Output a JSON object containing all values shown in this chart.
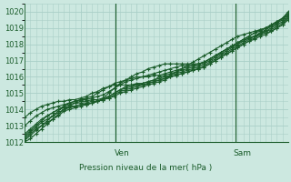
{
  "xlabel": "Pression niveau de la mer( hPa )",
  "ylim": [
    1012,
    1020.5
  ],
  "yticks": [
    1012,
    1013,
    1014,
    1015,
    1016,
    1017,
    1018,
    1019,
    1020
  ],
  "bg_color": "#cce8e0",
  "grid_color": "#aacfc8",
  "line_color": "#1a5c2a",
  "vline_x": [
    0.345,
    0.8
  ],
  "vline_labels": [
    "Ven",
    "Sam"
  ],
  "num_points": 48,
  "series": [
    [
      1012.2,
      1012.5,
      1012.8,
      1013.0,
      1013.2,
      1013.4,
      1013.7,
      1014.0,
      1014.2,
      1014.4,
      1014.5,
      1014.5,
      1014.6,
      1014.6,
      1014.7,
      1014.8,
      1015.0,
      1015.2,
      1015.4,
      1015.5,
      1015.6,
      1015.6,
      1015.7,
      1015.8,
      1016.0,
      1016.1,
      1016.2,
      1016.3,
      1016.4,
      1016.5,
      1016.6,
      1016.7,
      1016.8,
      1017.0,
      1017.2,
      1017.4,
      1017.6,
      1017.8,
      1018.0,
      1018.2,
      1018.4,
      1018.5,
      1018.7,
      1018.9,
      1019.1,
      1019.3,
      1019.6,
      1020.0
    ],
    [
      1012.4,
      1012.7,
      1013.0,
      1013.3,
      1013.6,
      1013.8,
      1014.0,
      1014.2,
      1014.3,
      1014.4,
      1014.4,
      1014.4,
      1014.5,
      1014.5,
      1014.6,
      1014.7,
      1014.9,
      1015.1,
      1015.2,
      1015.3,
      1015.4,
      1015.5,
      1015.6,
      1015.7,
      1015.8,
      1015.9,
      1016.0,
      1016.1,
      1016.2,
      1016.3,
      1016.4,
      1016.5,
      1016.6,
      1016.8,
      1017.0,
      1017.2,
      1017.4,
      1017.6,
      1017.8,
      1018.0,
      1018.2,
      1018.4,
      1018.6,
      1018.7,
      1018.8,
      1019.0,
      1019.2,
      1019.5
    ],
    [
      1012.3,
      1012.6,
      1012.9,
      1013.2,
      1013.4,
      1013.6,
      1013.8,
      1014.0,
      1014.1,
      1014.2,
      1014.3,
      1014.3,
      1014.4,
      1014.5,
      1014.6,
      1014.8,
      1015.0,
      1015.2,
      1015.3,
      1015.4,
      1015.5,
      1015.6,
      1015.7,
      1015.8,
      1015.9,
      1016.0,
      1016.1,
      1016.2,
      1016.3,
      1016.4,
      1016.5,
      1016.6,
      1016.7,
      1016.9,
      1017.1,
      1017.3,
      1017.5,
      1017.7,
      1017.9,
      1018.1,
      1018.3,
      1018.5,
      1018.6,
      1018.8,
      1018.9,
      1019.1,
      1019.3,
      1019.7
    ],
    [
      1012.5,
      1012.8,
      1013.1,
      1013.4,
      1013.6,
      1013.8,
      1014.0,
      1014.1,
      1014.2,
      1014.2,
      1014.3,
      1014.3,
      1014.4,
      1014.5,
      1014.6,
      1014.7,
      1014.8,
      1015.0,
      1015.1,
      1015.2,
      1015.3,
      1015.4,
      1015.5,
      1015.6,
      1015.7,
      1015.8,
      1016.0,
      1016.1,
      1016.2,
      1016.3,
      1016.4,
      1016.5,
      1016.6,
      1016.8,
      1017.0,
      1017.2,
      1017.4,
      1017.6,
      1017.8,
      1018.0,
      1018.2,
      1018.3,
      1018.5,
      1018.6,
      1018.8,
      1019.0,
      1019.2,
      1019.6
    ],
    [
      1012.1,
      1012.4,
      1012.7,
      1013.0,
      1013.3,
      1013.6,
      1013.9,
      1014.2,
      1014.4,
      1014.5,
      1014.6,
      1014.6,
      1014.7,
      1014.8,
      1014.9,
      1015.1,
      1015.3,
      1015.5,
      1015.7,
      1015.8,
      1015.9,
      1016.0,
      1016.1,
      1016.2,
      1016.3,
      1016.4,
      1016.5,
      1016.6,
      1016.7,
      1016.7,
      1016.7,
      1016.8,
      1016.9,
      1017.1,
      1017.3,
      1017.5,
      1017.7,
      1017.9,
      1018.1,
      1018.3,
      1018.5,
      1018.7,
      1018.9,
      1019.0,
      1019.2,
      1019.4,
      1019.6,
      1019.9
    ],
    [
      1012.0,
      1012.2,
      1012.5,
      1012.8,
      1013.1,
      1013.4,
      1013.6,
      1013.9,
      1014.0,
      1014.1,
      1014.2,
      1014.3,
      1014.4,
      1014.5,
      1014.7,
      1015.0,
      1015.3,
      1015.6,
      1015.8,
      1016.0,
      1016.2,
      1016.3,
      1016.5,
      1016.6,
      1016.7,
      1016.8,
      1016.8,
      1016.8,
      1016.8,
      1016.8,
      1016.8,
      1016.8,
      1016.9,
      1017.1,
      1017.3,
      1017.5,
      1017.7,
      1017.9,
      1018.1,
      1018.3,
      1018.5,
      1018.7,
      1018.8,
      1019.0,
      1019.2,
      1019.4,
      1019.6,
      1019.8
    ],
    [
      1013.0,
      1013.3,
      1013.6,
      1013.8,
      1014.0,
      1014.1,
      1014.2,
      1014.3,
      1014.4,
      1014.5,
      1014.6,
      1014.7,
      1014.8,
      1015.0,
      1015.2,
      1015.4,
      1015.6,
      1015.7,
      1015.8,
      1015.9,
      1016.0,
      1016.0,
      1016.0,
      1016.1,
      1016.1,
      1016.2,
      1016.3,
      1016.4,
      1016.5,
      1016.6,
      1016.7,
      1016.8,
      1016.9,
      1017.1,
      1017.3,
      1017.5,
      1017.7,
      1017.9,
      1018.1,
      1018.2,
      1018.4,
      1018.5,
      1018.7,
      1018.8,
      1019.0,
      1019.2,
      1019.4,
      1019.7
    ],
    [
      1013.5,
      1013.8,
      1014.0,
      1014.2,
      1014.3,
      1014.4,
      1014.5,
      1014.5,
      1014.6,
      1014.6,
      1014.7,
      1014.8,
      1015.0,
      1015.1,
      1015.3,
      1015.4,
      1015.5,
      1015.5,
      1015.5,
      1015.5,
      1015.5,
      1015.5,
      1015.6,
      1015.7,
      1015.8,
      1015.9,
      1016.1,
      1016.3,
      1016.5,
      1016.7,
      1016.9,
      1017.1,
      1017.3,
      1017.5,
      1017.7,
      1017.9,
      1018.1,
      1018.3,
      1018.5,
      1018.6,
      1018.7,
      1018.8,
      1018.9,
      1019.0,
      1019.1,
      1019.3,
      1019.5,
      1019.8
    ]
  ]
}
